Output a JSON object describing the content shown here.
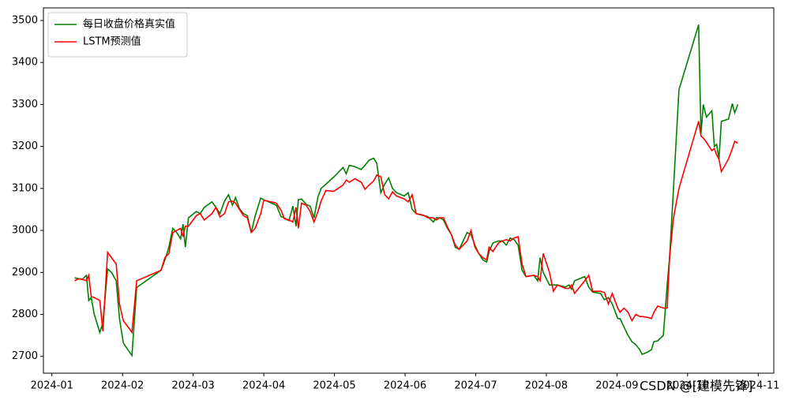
{
  "chart_data": {
    "type": "line",
    "x": [
      1.322,
      1.378,
      1.433,
      1.489,
      1.522,
      1.556,
      1.6,
      1.678,
      1.722,
      1.789,
      1.844,
      1.911,
      1.956,
      2.011,
      2.078,
      2.133,
      2.2,
      2.544,
      2.6,
      2.656,
      2.711,
      2.767,
      2.822,
      2.856,
      2.889,
      2.933,
      3.044,
      3.1,
      3.156,
      3.267,
      3.322,
      3.378,
      3.444,
      3.5,
      3.556,
      3.6,
      3.656,
      3.711,
      3.767,
      3.822,
      3.878,
      3.956,
      4.0,
      4.178,
      4.244,
      4.289,
      4.356,
      4.411,
      4.456,
      4.489,
      4.533,
      4.6,
      4.656,
      4.711,
      4.767,
      4.811,
      4.878,
      4.989,
      5.122,
      5.167,
      5.211,
      5.289,
      5.378,
      5.433,
      5.489,
      5.556,
      5.6,
      5.656,
      5.711,
      5.767,
      5.822,
      5.878,
      5.989,
      6.044,
      6.1,
      6.156,
      6.267,
      6.322,
      6.4,
      6.444,
      6.489,
      6.544,
      6.6,
      6.656,
      6.711,
      6.767,
      6.822,
      6.878,
      6.933,
      6.989,
      7.044,
      7.1,
      7.156,
      7.189,
      7.244,
      7.322,
      7.378,
      7.433,
      7.489,
      7.544,
      7.6,
      7.656,
      7.711,
      7.822,
      7.878,
      7.911,
      7.956,
      8.044,
      8.1,
      8.156,
      8.267,
      8.322,
      8.356,
      8.4,
      8.544,
      8.6,
      8.656,
      8.767,
      8.822,
      8.878,
      8.933,
      9.011,
      9.044,
      9.1,
      9.156,
      9.211,
      9.267,
      9.322,
      9.356,
      9.433,
      9.489,
      9.522,
      9.578,
      9.656,
      9.711,
      9.744,
      9.8,
      9.878,
      10.156,
      10.189,
      10.222,
      10.267,
      10.344,
      10.378,
      10.411,
      10.444,
      10.478,
      10.578,
      10.633,
      10.667,
      10.711
    ],
    "series": [
      {
        "name": "每日收盘价格真实值",
        "color": "#008000",
        "values": [
          2887,
          2885,
          2884,
          2893,
          2833,
          2840,
          2800,
          2757,
          2780,
          2908,
          2900,
          2880,
          2790,
          2732,
          2715,
          2702,
          2864,
          2905,
          2930,
          2960,
          3005,
          2995,
          2980,
          3015,
          2960,
          3030,
          3045,
          3040,
          3055,
          3068,
          3055,
          3040,
          3070,
          3085,
          3060,
          3078,
          3052,
          3040,
          3035,
          2995,
          3035,
          3077,
          3073,
          3060,
          3033,
          3030,
          3023,
          3058,
          3010,
          3073,
          3075,
          3062,
          3058,
          3030,
          3080,
          3100,
          3110,
          3127,
          3150,
          3135,
          3155,
          3152,
          3145,
          3155,
          3167,
          3172,
          3160,
          3090,
          3110,
          3125,
          3100,
          3090,
          3082,
          3090,
          3050,
          3040,
          3035,
          3033,
          3020,
          3030,
          3030,
          3025,
          3005,
          2990,
          2960,
          2955,
          2975,
          2995,
          2990,
          2965,
          2945,
          2930,
          2925,
          2950,
          2970,
          2975,
          2975,
          2965,
          2982,
          2978,
          2965,
          2905,
          2890,
          2893,
          2880,
          2935,
          2900,
          2870,
          2870,
          2870,
          2865,
          2870,
          2860,
          2880,
          2890,
          2865,
          2853,
          2850,
          2835,
          2840,
          2825,
          2790,
          2790,
          2770,
          2750,
          2735,
          2728,
          2716,
          2705,
          2710,
          2716,
          2735,
          2737,
          2750,
          2870,
          2935,
          3100,
          3335,
          3490,
          3230,
          3300,
          3270,
          3285,
          3200,
          3205,
          3170,
          3260,
          3265,
          3302,
          3280,
          3300
        ]
      },
      {
        "name": "LSTM预测值",
        "color": "#ff0000",
        "values": [
          2880,
          2885,
          2883,
          2880,
          2893,
          2843,
          2840,
          2833,
          2760,
          2948,
          2935,
          2920,
          2825,
          2785,
          2770,
          2757,
          2880,
          2905,
          2935,
          2945,
          2995,
          3000,
          3005,
          2985,
          3010,
          3010,
          3035,
          3040,
          3025,
          3040,
          3055,
          3032,
          3040,
          3068,
          3070,
          3065,
          3050,
          3035,
          3030,
          2995,
          3005,
          3040,
          3072,
          3065,
          3048,
          3028,
          3025,
          3020,
          3055,
          3005,
          3065,
          3060,
          3045,
          3020,
          3045,
          3070,
          3095,
          3093,
          3108,
          3120,
          3115,
          3123,
          3115,
          3098,
          3108,
          3118,
          3132,
          3128,
          3085,
          3075,
          3092,
          3082,
          3075,
          3068,
          3085,
          3040,
          3036,
          3030,
          3030,
          3025,
          3030,
          3030,
          3008,
          2990,
          2965,
          2955,
          2965,
          2975,
          3000,
          2960,
          2945,
          2935,
          2930,
          2960,
          2950,
          2970,
          2975,
          2978,
          2975,
          2982,
          2985,
          2920,
          2890,
          2893,
          2890,
          2880,
          2945,
          2900,
          2855,
          2870,
          2862,
          2862,
          2870,
          2850,
          2880,
          2893,
          2855,
          2855,
          2852,
          2825,
          2850,
          2815,
          2805,
          2815,
          2805,
          2785,
          2800,
          2795,
          2795,
          2793,
          2790,
          2805,
          2820,
          2815,
          2815,
          2935,
          3030,
          3100,
          3260,
          3225,
          3220,
          3210,
          3190,
          3195,
          3180,
          3170,
          3140,
          3170,
          3195,
          3212,
          3208
        ]
      }
    ],
    "xlim": [
      0.88,
      11.22
    ],
    "xticks": [
      {
        "value": 1,
        "label": "2024-01"
      },
      {
        "value": 2,
        "label": "2024-02"
      },
      {
        "value": 3,
        "label": "2024-03"
      },
      {
        "value": 4,
        "label": "2024-04"
      },
      {
        "value": 5,
        "label": "2024-05"
      },
      {
        "value": 6,
        "label": "2024-06"
      },
      {
        "value": 7,
        "label": "2024-07"
      },
      {
        "value": 8,
        "label": "2024-08"
      },
      {
        "value": 9,
        "label": "2024-09"
      },
      {
        "value": 10,
        "label": "2024-10"
      },
      {
        "value": 11,
        "label": "2024-11"
      }
    ],
    "ylim": [
      2660,
      3530
    ],
    "yticks": [
      2700,
      2800,
      2900,
      3000,
      3100,
      3200,
      3300,
      3400,
      3500
    ],
    "legend": "upper left",
    "watermark": "CSDN @[建模先锋]"
  }
}
